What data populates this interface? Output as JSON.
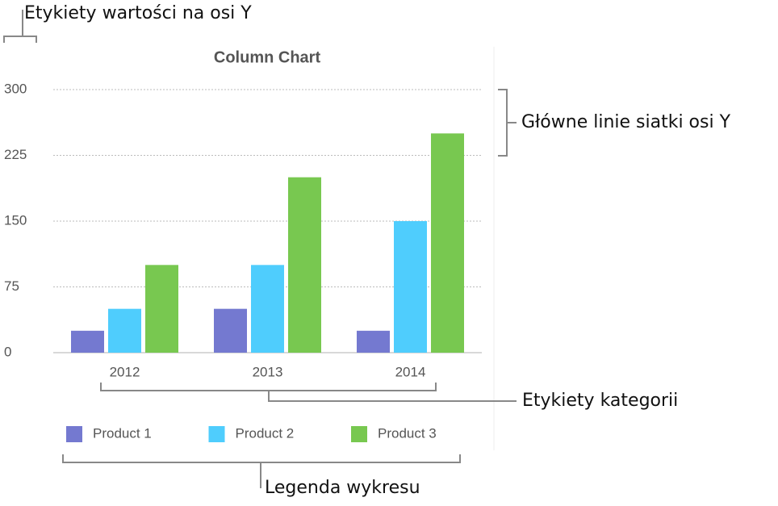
{
  "chart_data": {
    "type": "bar",
    "title": "Column Chart",
    "categories": [
      "2012",
      "2013",
      "2014"
    ],
    "series": [
      {
        "name": "Product 1",
        "color": "#7479d0",
        "values": [
          25,
          50,
          25
        ]
      },
      {
        "name": "Product 2",
        "color": "#4fcdfd",
        "values": [
          50,
          100,
          150
        ]
      },
      {
        "name": "Product 3",
        "color": "#78c850",
        "values": [
          100,
          200,
          250
        ]
      }
    ],
    "ylim": [
      0,
      300
    ],
    "yticks": [
      0,
      75,
      150,
      225,
      300
    ],
    "grid": true,
    "legend": "bottom",
    "annotations": [
      "Etykiety wartości na osi Y",
      "Główne linie siatki osi Y",
      "Etykiety kategorii",
      "Legenda wykresu"
    ]
  }
}
